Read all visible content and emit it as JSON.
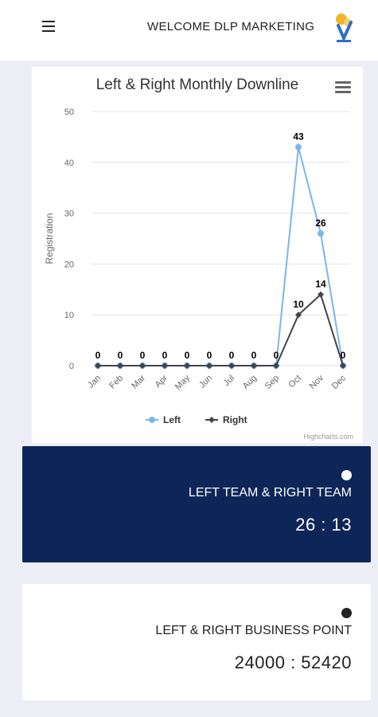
{
  "header": {
    "welcome_text": "WELCOME DLP MARKETING",
    "menu_icon": "hamburger-icon",
    "logo_icon": "dlp-logo"
  },
  "chart_data": {
    "type": "line",
    "title": "Left & Right Monthly Downline",
    "ylabel": "Registration",
    "xlabel": "",
    "categories": [
      "Jan",
      "Feb",
      "Mar",
      "Apr",
      "May",
      "Jun",
      "Jul",
      "Aug",
      "Sep",
      "Oct",
      "Nov",
      "Dec"
    ],
    "ylim": [
      0,
      50
    ],
    "yticks": [
      0,
      10,
      20,
      30,
      40,
      50
    ],
    "series": [
      {
        "name": "Left",
        "values": [
          0,
          0,
          0,
          0,
          0,
          0,
          0,
          0,
          0,
          43,
          26,
          0
        ],
        "color": "#7cb5ec"
      },
      {
        "name": "Right",
        "values": [
          0,
          0,
          0,
          0,
          0,
          0,
          0,
          0,
          0,
          10,
          14,
          0
        ],
        "color": "#434348"
      }
    ],
    "grid": true,
    "legend": "bottom-center",
    "credits": "Highcharts.com",
    "menu_icon": "chart-menu-icon"
  },
  "team_card": {
    "title": "LEFT TEAM & RIGHT TEAM",
    "value": "26 : 13",
    "background": "#0e2657"
  },
  "business_card": {
    "title": "LEFT & RIGHT BUSINESS POINT",
    "value": "24000 : 52420"
  }
}
